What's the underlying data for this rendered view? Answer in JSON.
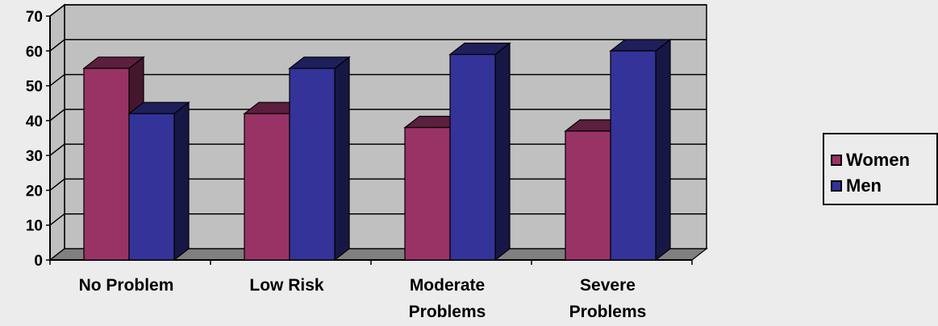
{
  "chart_data": {
    "type": "bar",
    "categories": [
      [
        "No Problem"
      ],
      [
        "Low Risk"
      ],
      [
        "Moderate",
        "Problems"
      ],
      [
        "Severe",
        "Problems"
      ]
    ],
    "series": [
      {
        "name": "Women",
        "values": [
          55,
          42,
          38,
          37
        ],
        "color": "#993366"
      },
      {
        "name": "Men",
        "values": [
          42,
          55,
          59,
          60
        ],
        "color": "#333399"
      }
    ],
    "ylim": [
      0,
      70
    ],
    "yticks": [
      "0",
      "10",
      "20",
      "30",
      "40",
      "50",
      "60",
      "70"
    ],
    "title": "",
    "xlabel": "",
    "ylabel": "",
    "grid": true,
    "legend_position": "right",
    "wall_color": "#c0c0c0",
    "floor_color": "#808080"
  },
  "legend": {
    "items": [
      {
        "label": "Women",
        "color": "#993366"
      },
      {
        "label": "Men",
        "color": "#333399"
      }
    ]
  }
}
